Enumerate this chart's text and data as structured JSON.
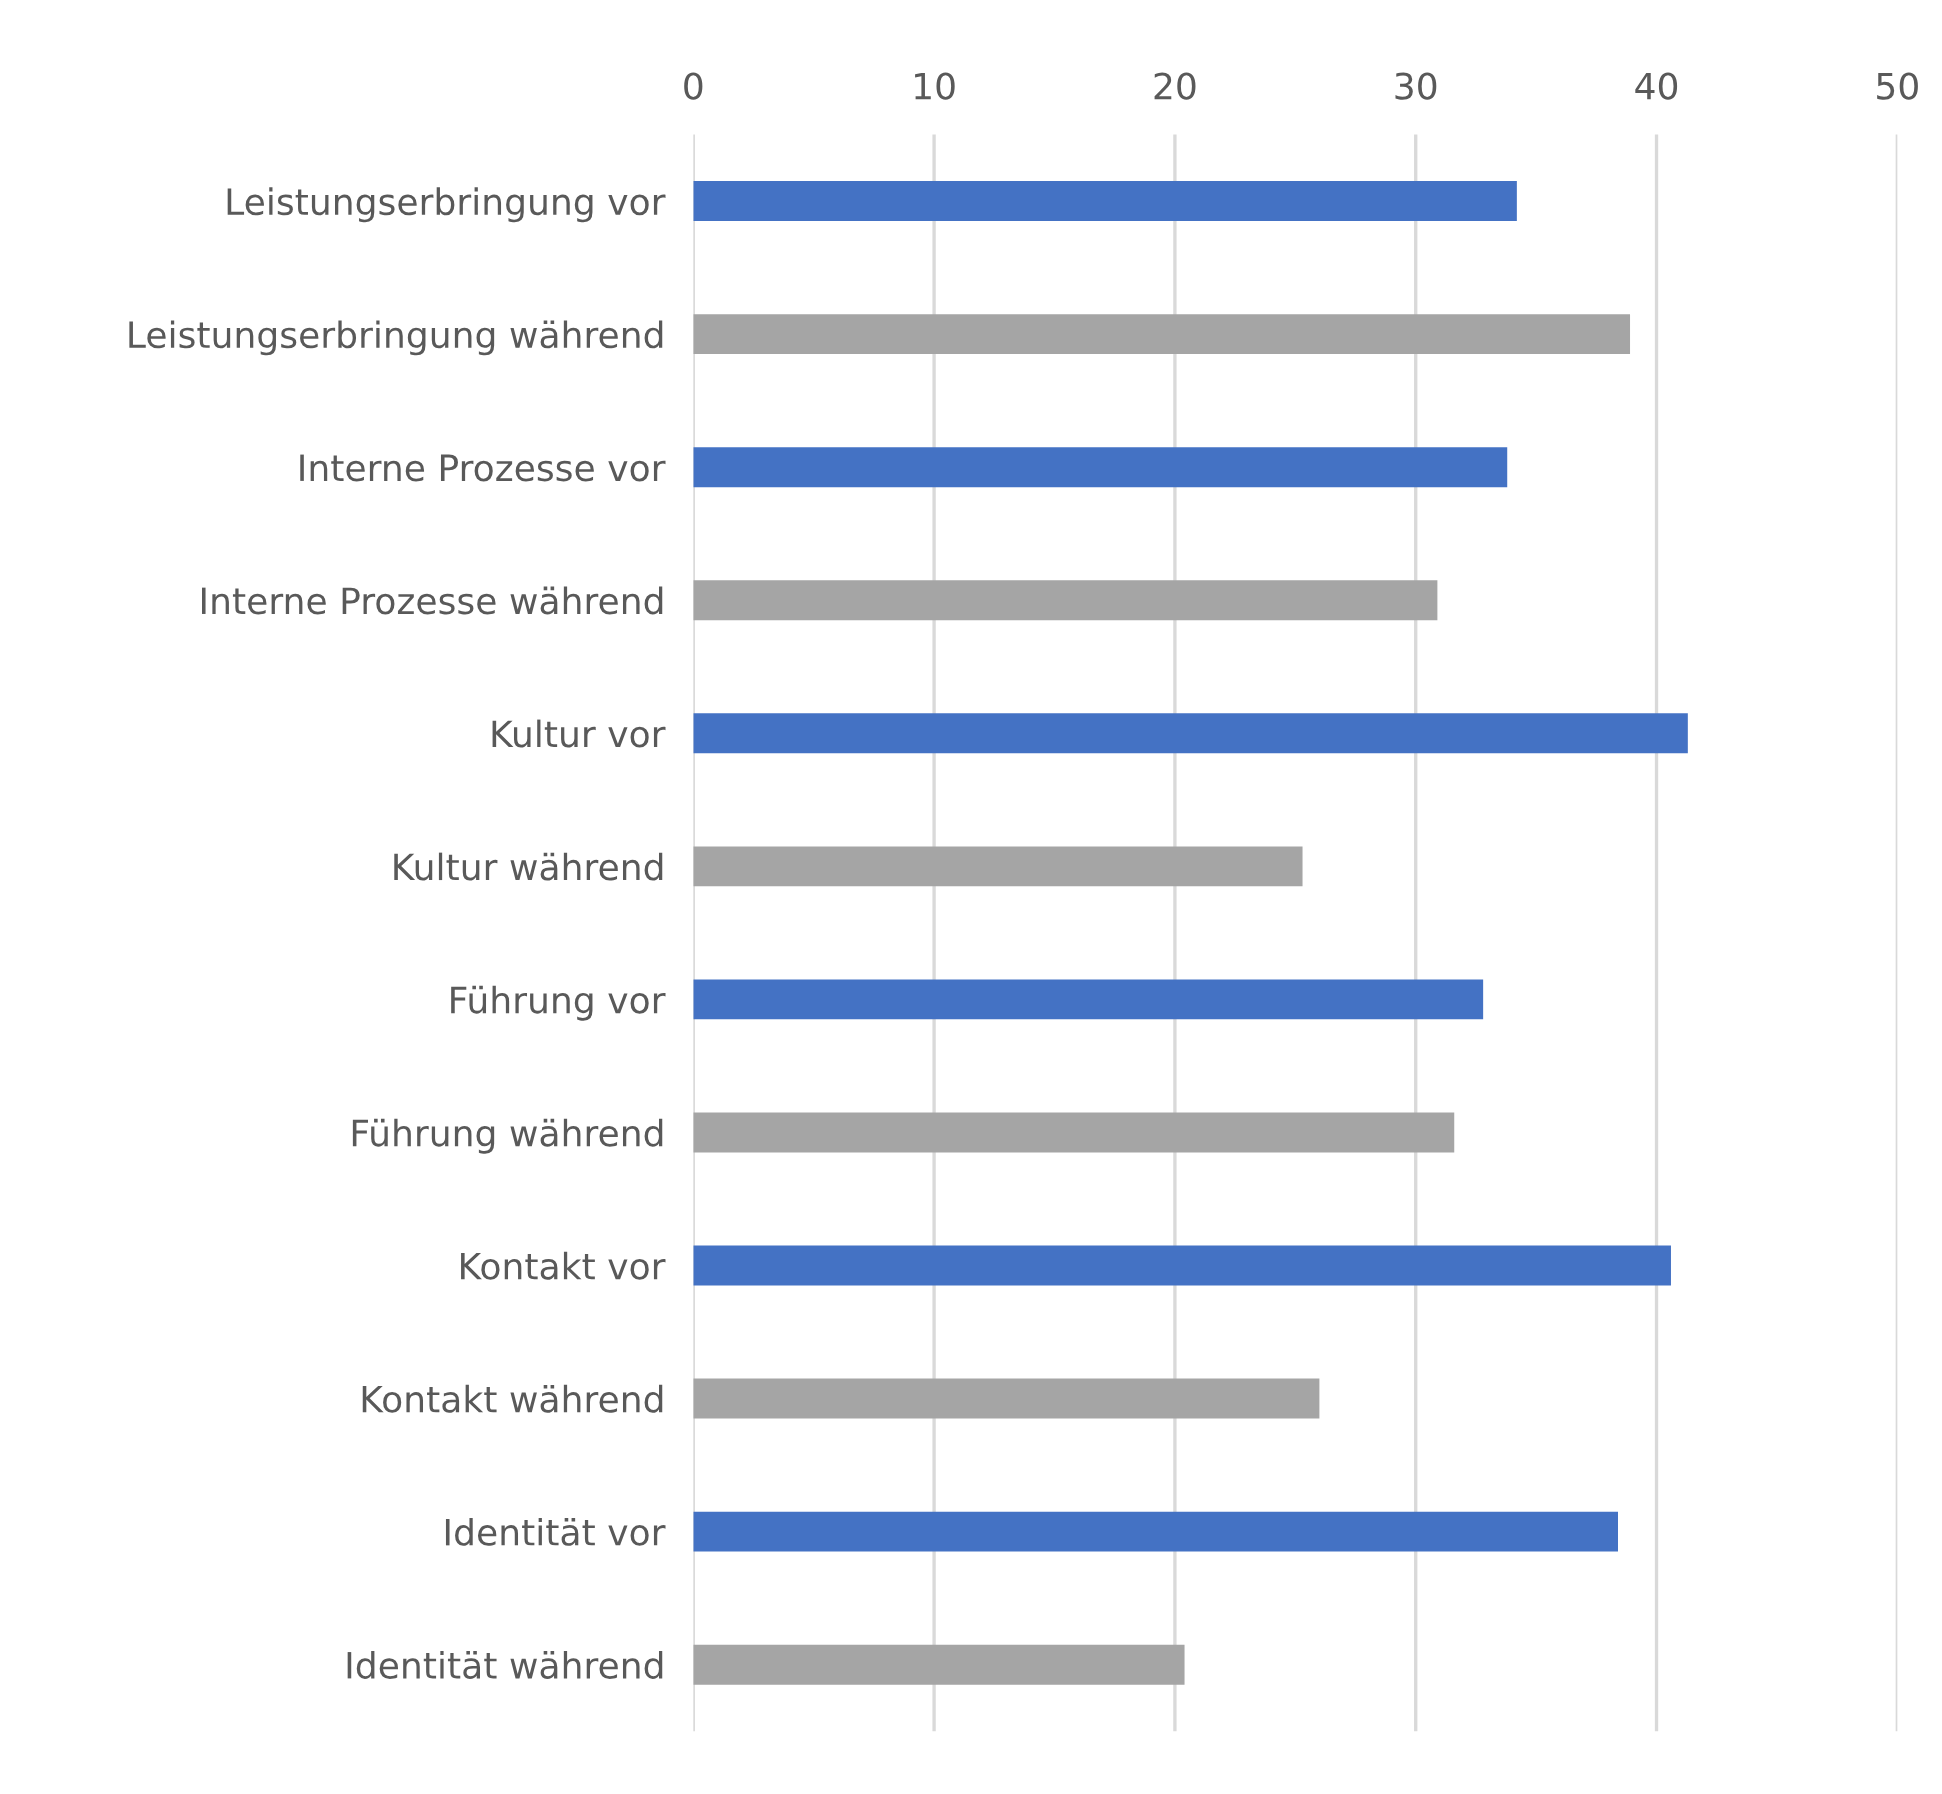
{
  "chart_data": {
    "type": "bar",
    "orientation": "horizontal",
    "categories": [
      "Leistungserbringung vor",
      "Leistungserbringung während",
      "Interne Prozesse vor",
      "Interne Prozesse während",
      "Kultur vor",
      "Kultur während",
      "Führung vor",
      "Führung während",
      "Kontakt vor",
      "Kontakt während",
      "Identität vor",
      "Identität während"
    ],
    "values": [
      34.2,
      38.9,
      33.8,
      30.9,
      41.3,
      25.3,
      32.8,
      31.6,
      40.6,
      26.0,
      38.4,
      20.4
    ],
    "colors": [
      "#4472c4",
      "#a5a5a5",
      "#4472c4",
      "#a5a5a5",
      "#4472c4",
      "#a5a5a5",
      "#4472c4",
      "#a5a5a5",
      "#4472c4",
      "#a5a5a5",
      "#4472c4",
      "#a5a5a5"
    ],
    "xlim": [
      0,
      50
    ],
    "xticks": [
      0,
      10,
      20,
      30,
      40,
      50
    ],
    "grid": "x",
    "legend": false
  }
}
